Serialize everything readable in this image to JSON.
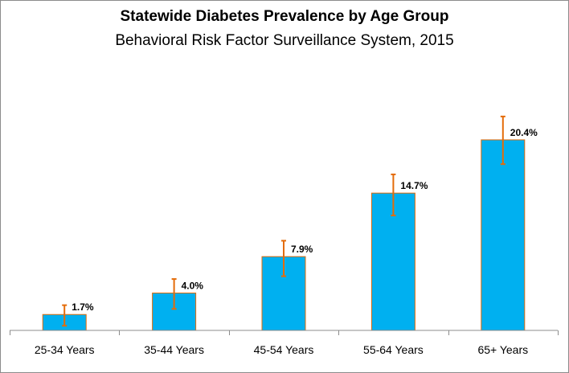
{
  "chart_data": {
    "type": "bar",
    "title": "Statewide Diabetes Prevalence by Age Group",
    "subtitle": "Behavioral Risk Factor Surveillance System, 2015",
    "categories": [
      "25-34 Years",
      "35-44 Years",
      "45-54 Years",
      "55-64 Years",
      "65+ Years"
    ],
    "values": [
      1.7,
      4.0,
      7.9,
      14.7,
      20.4
    ],
    "data_labels": [
      "1.7%",
      "4.0%",
      "7.9%",
      "14.7%",
      "20.4%"
    ],
    "error_low": [
      0.5,
      2.3,
      5.8,
      12.3,
      17.8
    ],
    "error_high": [
      2.7,
      5.5,
      9.6,
      16.7,
      22.9
    ],
    "ylim": [
      0,
      25
    ],
    "xlabel": "",
    "ylabel": "",
    "grid": false,
    "bar_color": "#00b0f0",
    "bar_edge_color": "#e46c0a",
    "error_color": "#e46c0a"
  }
}
